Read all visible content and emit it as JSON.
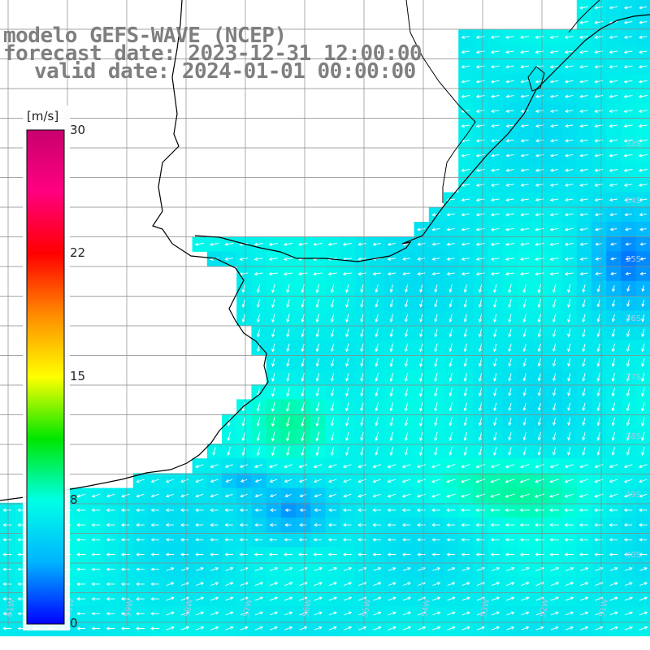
{
  "title": {
    "line1": "modelo GEFS-WAVE (NCEP)",
    "line2": "forecast date: 2023-12-31 12:00:00",
    "line3": "valid date: 2024-01-01 00:00:00"
  },
  "colorbar": {
    "unit": "[m/s]",
    "ticks": [
      "30",
      "22",
      "15",
      "8",
      "0"
    ],
    "colors": [
      "#0000ff",
      "#00b4ff",
      "#00ffe6",
      "#00e600",
      "#ffff00",
      "#ff8c00",
      "#ff0000",
      "#ff0080",
      "#c8006e"
    ]
  },
  "grid": {
    "lat_labels": [
      "33S",
      "34S",
      "35S",
      "36S",
      "37S",
      "38S",
      "39S",
      "40S"
    ],
    "lon_labels": [
      "61W",
      "60W",
      "59W",
      "58W",
      "57W",
      "56W",
      "55W",
      "54W",
      "53W",
      "52W",
      "51W"
    ]
  },
  "colors": {
    "land": "#ffffff",
    "coast": "#000000",
    "grid": "#888888",
    "title": "#7f7f7f",
    "arrow": "#ffffff"
  }
}
